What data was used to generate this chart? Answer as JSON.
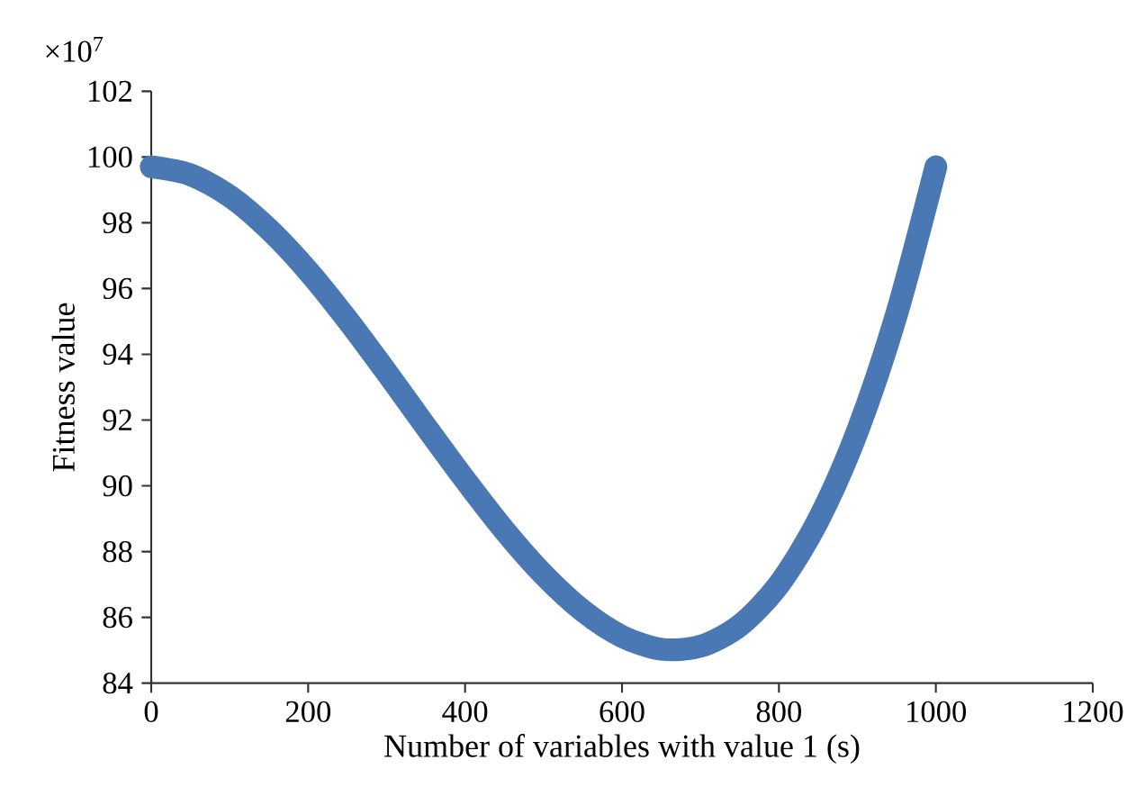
{
  "chart_data": {
    "type": "line",
    "xlabel": "Number of variables with value 1 (s)",
    "ylabel": "Fitness value",
    "annotations": [
      "×10$^{7}$"
    ],
    "x": [
      0,
      50,
      100,
      150,
      200,
      250,
      300,
      350,
      400,
      450,
      500,
      550,
      600,
      650,
      700,
      750,
      800,
      850,
      900,
      950,
      1000
    ],
    "series": [
      {
        "color": "#4a78b4",
        "values": [
          99.7,
          99.46,
          98.81,
          97.8,
          96.53,
          95.05,
          93.45,
          91.8,
          90.18,
          88.65,
          87.3,
          86.2,
          85.42,
          85.03,
          85.12,
          85.75,
          87.0,
          88.95,
          91.66,
          95.22,
          99.7
        ]
      }
    ],
    "xlim": [
      0,
      1200
    ],
    "xticks": [
      0,
      200,
      400,
      600,
      800,
      1000,
      1200
    ],
    "ylim": [
      84,
      102
    ],
    "yticks": [
      84,
      86,
      88,
      90,
      92,
      94,
      96,
      98,
      100,
      102
    ],
    "grid": false,
    "marker": "none",
    "line_style": "solid"
  }
}
